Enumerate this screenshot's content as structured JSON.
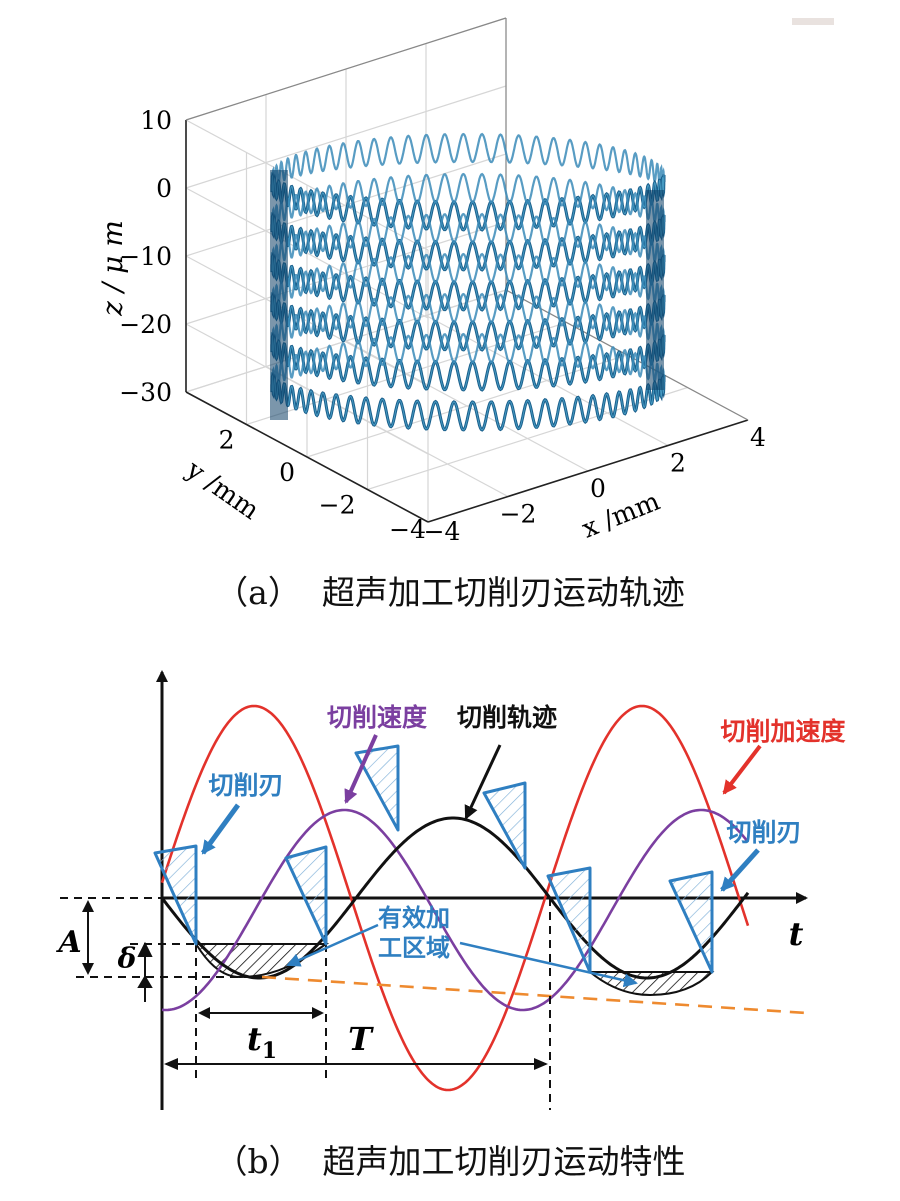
{
  "figure_a": {
    "caption_label": "（a）",
    "caption_text": "超声加工切削刃运动轨迹",
    "chart_data": {
      "type": "3d-line",
      "zlabel": "z / μ m",
      "xlabel": "x /mm",
      "ylabel": "y /mm",
      "z_ticks": [
        "10",
        "0",
        "−10",
        "−20",
        "−30"
      ],
      "x_ticks": [
        "−4",
        "−2",
        "0",
        "2",
        "4"
      ],
      "y_ticks": [
        "2",
        "0",
        "−2",
        "−4"
      ],
      "zlim": [
        -30,
        10
      ],
      "xlim": [
        -4,
        4
      ],
      "ylim": [
        -4,
        4
      ],
      "grid": true,
      "series_color": "#1a5f8c"
    }
  },
  "figure_b": {
    "caption_label": "（b）",
    "caption_text": "超声加工切削刃运动特性",
    "labels": {
      "cutting_speed": "切削速度",
      "cutting_trajectory": "切削轨迹",
      "cutting_acceleration": "切削加速度",
      "cutting_edge_left": "切削刃",
      "cutting_edge_right": "切削刃",
      "effective_zone_line1": "有效加",
      "effective_zone_line2": "工区域",
      "axis_t": "t",
      "amp_A": "A",
      "delta": "δ",
      "t1_main": "t",
      "t1_sub": "1",
      "period_T": "T"
    },
    "colors": {
      "trajectory": "#111111",
      "speed": "#7b3fa0",
      "acceleration": "#e3322b",
      "edge": "#2f7fc1",
      "label_blue": "#2f7fc1",
      "dash_orange": "#ee8a2f"
    }
  }
}
